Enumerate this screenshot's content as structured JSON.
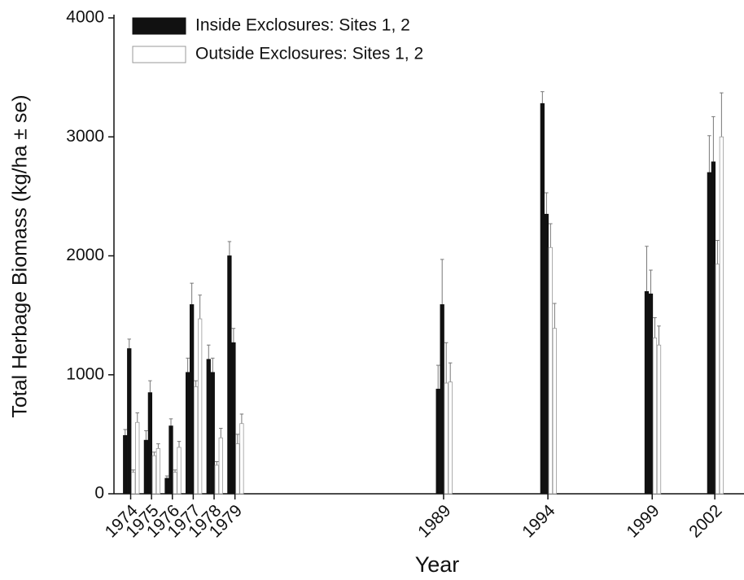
{
  "chart_data": {
    "type": "bar",
    "x_label": "Year",
    "y_label": "Total Herbage Biomass (kg/ha ± se)",
    "x": [
      1974,
      1975,
      1976,
      1977,
      1978,
      1979,
      1989,
      1994,
      1999,
      2002
    ],
    "series": [
      {
        "name": "Inside Exclosures: Sites 1, 2",
        "color": "#111111",
        "values": [
          [
            490,
            1220
          ],
          [
            450,
            850
          ],
          [
            130,
            570
          ],
          [
            1020,
            1590
          ],
          [
            1130,
            1020
          ],
          [
            2000,
            1270
          ],
          [
            880,
            1590
          ],
          [
            3280,
            2350
          ],
          [
            1700,
            1680
          ],
          [
            2700,
            2790
          ]
        ],
        "errors": [
          [
            50,
            80
          ],
          [
            80,
            100
          ],
          [
            20,
            60
          ],
          [
            120,
            180
          ],
          [
            120,
            120
          ],
          [
            120,
            120
          ],
          [
            200,
            380
          ],
          [
            100,
            180
          ],
          [
            380,
            200
          ],
          [
            310,
            380
          ]
        ]
      },
      {
        "name": "Outside Exclosures: Sites 1, 2",
        "color": "#ffffff",
        "values": [
          [
            180,
            600
          ],
          [
            320,
            380
          ],
          [
            180,
            390
          ],
          [
            900,
            1470
          ],
          [
            240,
            470
          ],
          [
            420,
            590
          ],
          [
            930,
            940
          ],
          [
            2070,
            1390
          ],
          [
            1310,
            1250
          ],
          [
            1930,
            3000
          ]
        ],
        "errors": [
          [
            20,
            80
          ],
          [
            30,
            40
          ],
          [
            20,
            50
          ],
          [
            50,
            200
          ],
          [
            30,
            80
          ],
          [
            80,
            80
          ],
          [
            340,
            160
          ],
          [
            200,
            210
          ],
          [
            170,
            160
          ],
          [
            200,
            370
          ]
        ]
      }
    ],
    "xlim": [
      1973.2,
      2003.4
    ],
    "ylim": [
      0,
      4000
    ],
    "yticks": [
      0,
      1000,
      2000,
      3000,
      4000
    ]
  }
}
